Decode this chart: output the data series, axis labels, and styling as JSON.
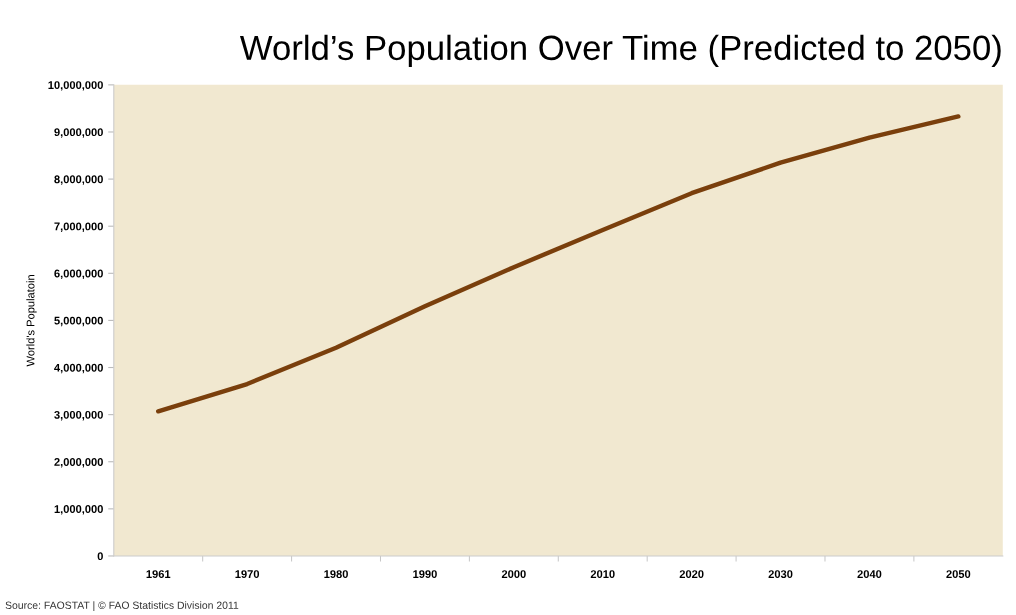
{
  "chart_data": {
    "type": "line",
    "title": "World’s Population Over Time (Predicted to 2050)",
    "ylabel": "World's Populatoin",
    "categories": [
      "1961",
      "1970",
      "1980",
      "1990",
      "2000",
      "2010",
      "2020",
      "2030",
      "2040",
      "2050"
    ],
    "series": [
      {
        "color": "#7a3f0c",
        "values": [
          3070000,
          3650000,
          4420000,
          5300000,
          6130000,
          6920000,
          7700000,
          8350000,
          8880000,
          9330000
        ]
      }
    ],
    "ylim": [
      0,
      10000000
    ],
    "yticks": [
      {
        "value": 0,
        "label": "0"
      },
      {
        "value": 1000000,
        "label": "1,000,000"
      },
      {
        "value": 2000000,
        "label": "2,000,000"
      },
      {
        "value": 3000000,
        "label": "3,000,000"
      },
      {
        "value": 4000000,
        "label": "4,000,000"
      },
      {
        "value": 5000000,
        "label": "5,000,000"
      },
      {
        "value": 6000000,
        "label": "6,000,000"
      },
      {
        "value": 7000000,
        "label": "7,000,000"
      },
      {
        "value": 8000000,
        "label": "8,000,000"
      },
      {
        "value": 9000000,
        "label": "9,000,000"
      },
      {
        "value": 10000000,
        "label": "10,000,000"
      }
    ],
    "grid": false,
    "marker": "none",
    "line_style": "solid",
    "annotations": [
      "Source: FAOSTAT | © FAO Statistics Division 2011"
    ]
  }
}
